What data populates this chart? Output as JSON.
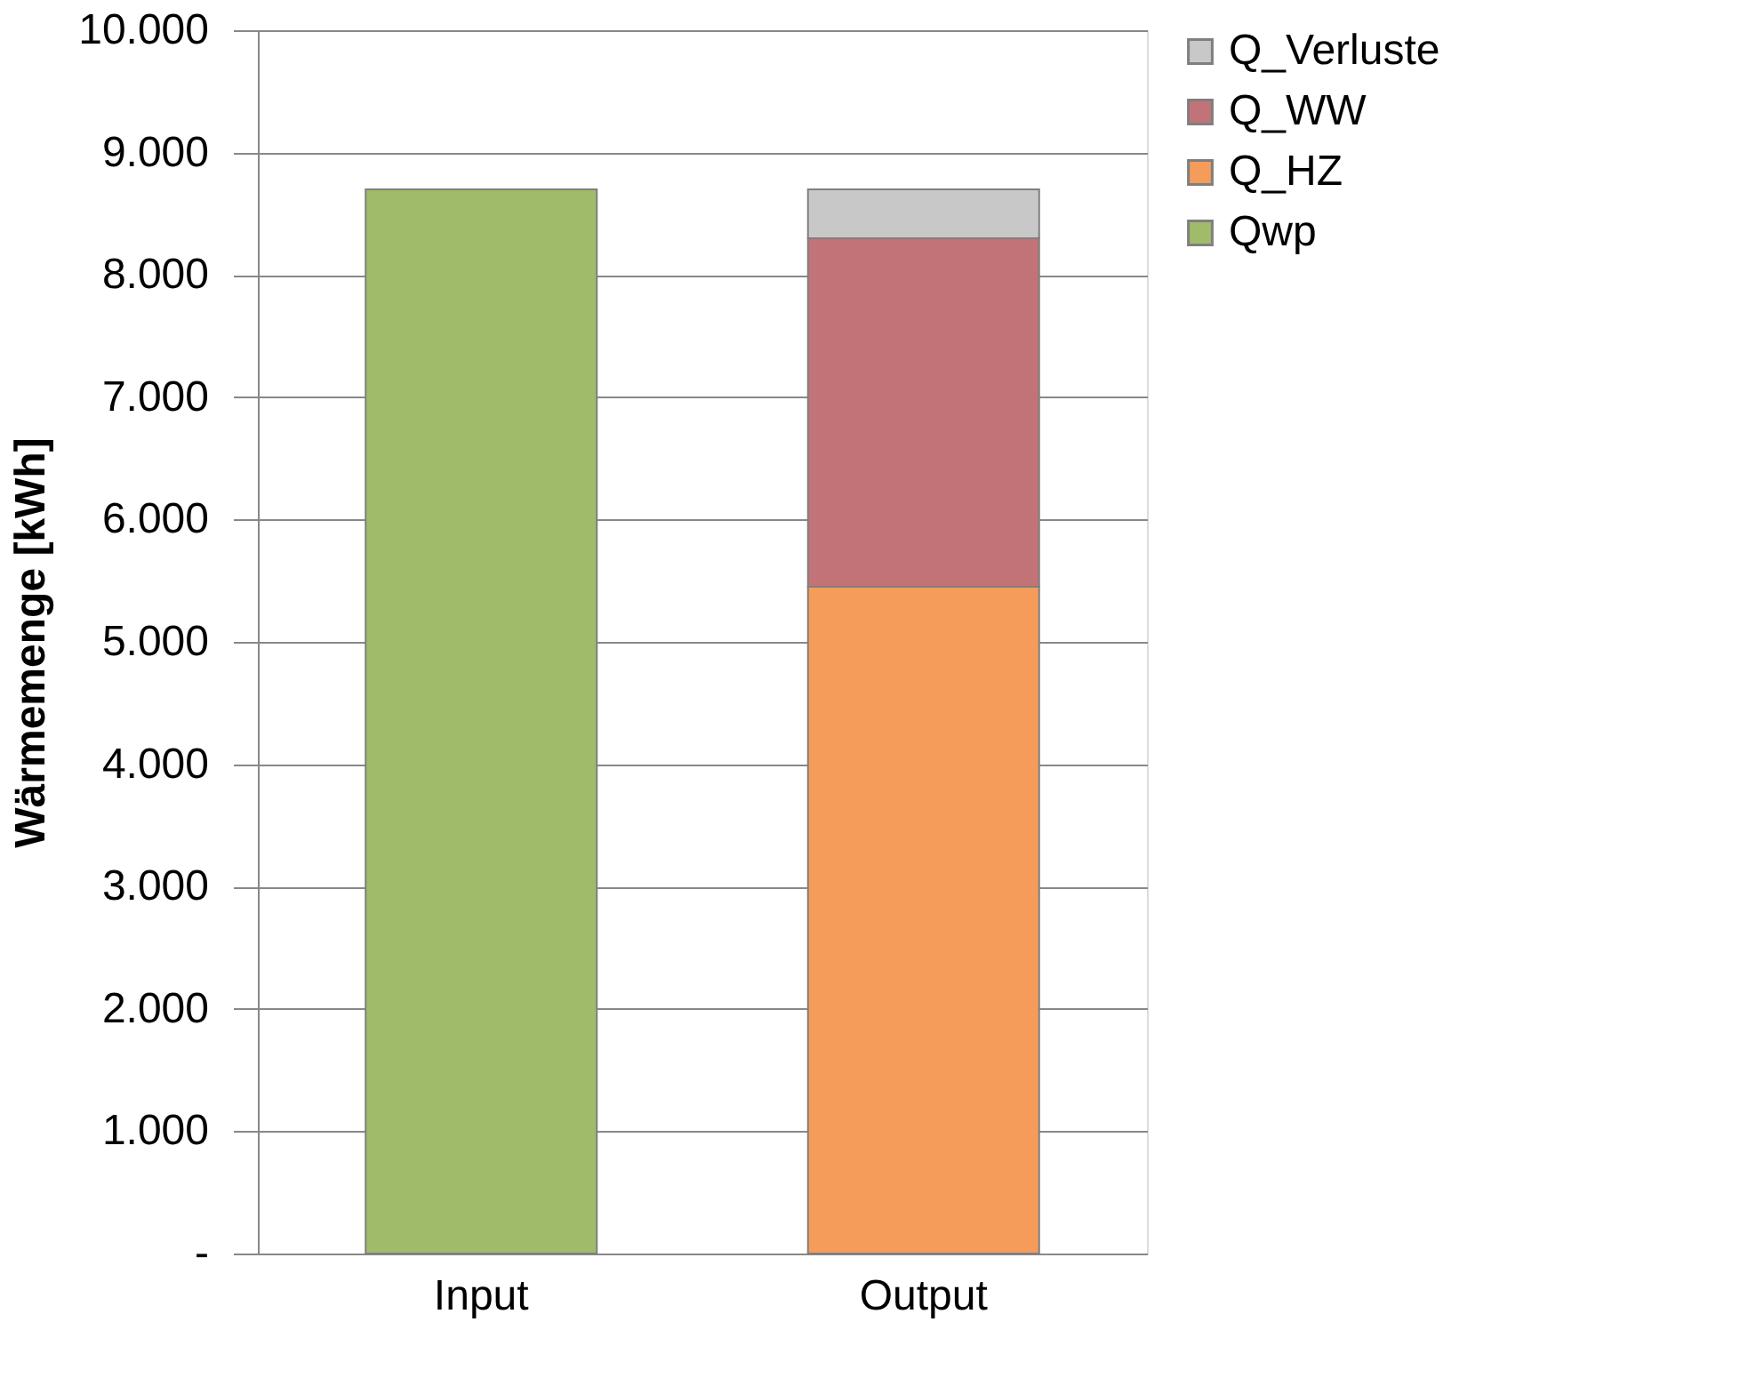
{
  "chart_data": {
    "type": "bar",
    "stacked": true,
    "ylabel": "Wärmemenge [kWh]",
    "categories": [
      "Input",
      "Output"
    ],
    "series": [
      {
        "name": "Qwp",
        "color": "#a0bc6a",
        "values": [
          8700,
          null
        ]
      },
      {
        "name": "Q_HZ",
        "color": "#f59c5a",
        "values": [
          null,
          5450
        ]
      },
      {
        "name": "Q_WW",
        "color": "#c27378",
        "values": [
          null,
          2850
        ]
      },
      {
        "name": "Q_Verluste",
        "color": "#c8c8c8",
        "values": [
          null,
          400
        ]
      }
    ],
    "ylim": [
      0,
      10000
    ],
    "yticks": [
      {
        "value": 0,
        "label": "-"
      },
      {
        "value": 1000,
        "label": "1.000"
      },
      {
        "value": 2000,
        "label": "2.000"
      },
      {
        "value": 3000,
        "label": "3.000"
      },
      {
        "value": 4000,
        "label": "4.000"
      },
      {
        "value": 5000,
        "label": "5.000"
      },
      {
        "value": 6000,
        "label": "6.000"
      },
      {
        "value": 7000,
        "label": "7.000"
      },
      {
        "value": 8000,
        "label": "8.000"
      },
      {
        "value": 9000,
        "label": "9.000"
      },
      {
        "value": 10000,
        "label": "10.000"
      }
    ],
    "grid": "y",
    "legend": "right"
  }
}
